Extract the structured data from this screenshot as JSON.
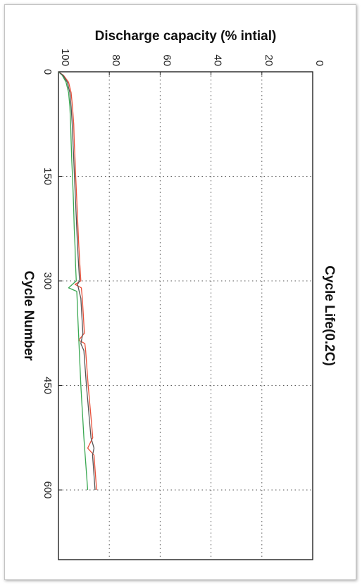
{
  "chart_data": {
    "type": "line",
    "orientation": "rotated-90-clockwise",
    "title": "Cycle Life(0.2C)",
    "xlabel": "Cycle Number",
    "ylabel": "Discharge capacity (% intial)",
    "xlim": [
      0,
      700
    ],
    "ylim": [
      0,
      100
    ],
    "xticks": [
      0,
      150,
      300,
      450,
      600
    ],
    "xtick_labels": [
      "0",
      "150",
      "300",
      "450",
      "600"
    ],
    "yticks": [
      0,
      20,
      40,
      60,
      80,
      100
    ],
    "ytick_labels": [
      "0",
      "20",
      "40",
      "60",
      "80",
      "100"
    ],
    "grid": true,
    "grid_style": "dotted",
    "legend": "none",
    "series": [
      {
        "color": "#e8503a",
        "x": [
          0,
          5,
          15,
          30,
          50,
          75,
          100,
          125,
          150,
          175,
          200,
          225,
          250,
          275,
          300,
          305,
          310,
          325,
          350,
          375,
          385,
          390,
          400,
          425,
          450,
          475,
          500,
          525,
          540,
          550,
          575,
          600
        ],
        "y": [
          100,
          98,
          96,
          95,
          94.5,
          94,
          93.8,
          93.5,
          93.2,
          92.9,
          92.6,
          92.3,
          92.0,
          91.6,
          91.2,
          93.5,
          91.0,
          90.6,
          90.2,
          89.8,
          92.0,
          89.6,
          89.3,
          88.8,
          88.3,
          87.7,
          87.1,
          86.5,
          88.5,
          86.0,
          85.5,
          85.0
        ]
      },
      {
        "color": "#3aa852",
        "x": [
          0,
          5,
          15,
          30,
          50,
          75,
          100,
          125,
          150,
          175,
          200,
          225,
          250,
          275,
          300,
          310,
          315,
          330,
          350,
          375,
          400,
          425,
          450,
          475,
          500,
          525,
          550,
          575,
          600
        ],
        "y": [
          100,
          98.5,
          97,
          96,
          95.5,
          95.2,
          95.0,
          94.8,
          94.5,
          94.2,
          94.0,
          93.8,
          93.5,
          93.3,
          93.0,
          96.0,
          92.8,
          92.6,
          92.4,
          92.1,
          91.8,
          91.5,
          91.2,
          90.8,
          90.4,
          90.0,
          89.5,
          89.0,
          88.5
        ]
      },
      {
        "color": "#555555",
        "x": [
          0,
          5,
          15,
          30,
          50,
          75,
          100,
          125,
          150,
          175,
          200,
          225,
          250,
          275,
          300,
          305,
          325,
          350,
          375,
          390,
          400,
          425,
          450,
          475,
          500,
          525,
          540,
          550,
          575,
          600
        ],
        "y": [
          100,
          98.2,
          96.5,
          95.5,
          95.0,
          94.6,
          94.3,
          94.0,
          93.7,
          93.4,
          93.1,
          92.8,
          92.5,
          92.1,
          91.7,
          92.5,
          91.2,
          90.8,
          90.4,
          91.2,
          90.0,
          89.5,
          89.0,
          88.4,
          87.8,
          87.2,
          86.0,
          86.6,
          86.1,
          85.6
        ]
      }
    ]
  }
}
